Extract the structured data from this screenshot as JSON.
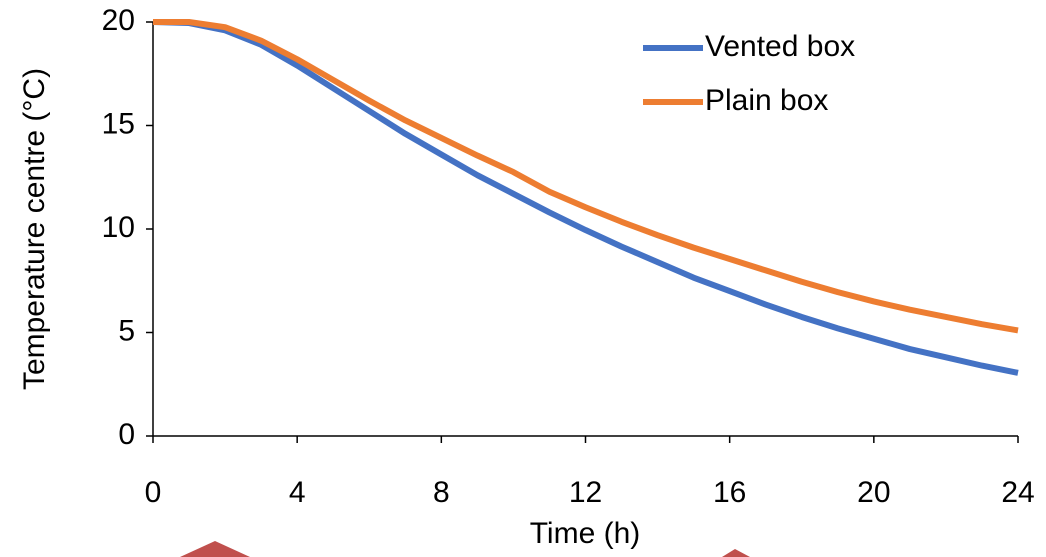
{
  "chart_data": {
    "type": "line",
    "x_label": "Time (h)",
    "y_label": "Temperature centre (°C)",
    "x": [
      0,
      1,
      2,
      3,
      4,
      5,
      6,
      7,
      8,
      9,
      10,
      11,
      12,
      13,
      14,
      15,
      16,
      17,
      18,
      19,
      20,
      21,
      22,
      23,
      24
    ],
    "series": [
      {
        "name": "Vented box",
        "color": "#4472c4",
        "values": [
          20,
          19.95,
          19.6,
          18.9,
          17.9,
          16.8,
          15.7,
          14.6,
          13.6,
          12.6,
          11.7,
          10.8,
          9.95,
          9.15,
          8.4,
          7.65,
          7.0,
          6.35,
          5.75,
          5.2,
          4.7,
          4.2,
          3.8,
          3.4,
          3.05
        ]
      },
      {
        "name": "Plain box",
        "color": "#ed7d31",
        "values": [
          20,
          20,
          19.75,
          19.1,
          18.2,
          17.2,
          16.2,
          15.25,
          14.4,
          13.55,
          12.75,
          11.8,
          11.05,
          10.35,
          9.7,
          9.1,
          8.55,
          8.0,
          7.45,
          6.95,
          6.5,
          6.1,
          5.75,
          5.4,
          5.1
        ]
      }
    ],
    "xlim": [
      0,
      24
    ],
    "xticks": [
      0,
      4,
      8,
      12,
      16,
      20,
      24
    ],
    "ylim": [
      0,
      20
    ],
    "yticks": [
      0,
      5,
      10,
      15,
      20
    ],
    "grid": false,
    "legend": "upper right"
  }
}
